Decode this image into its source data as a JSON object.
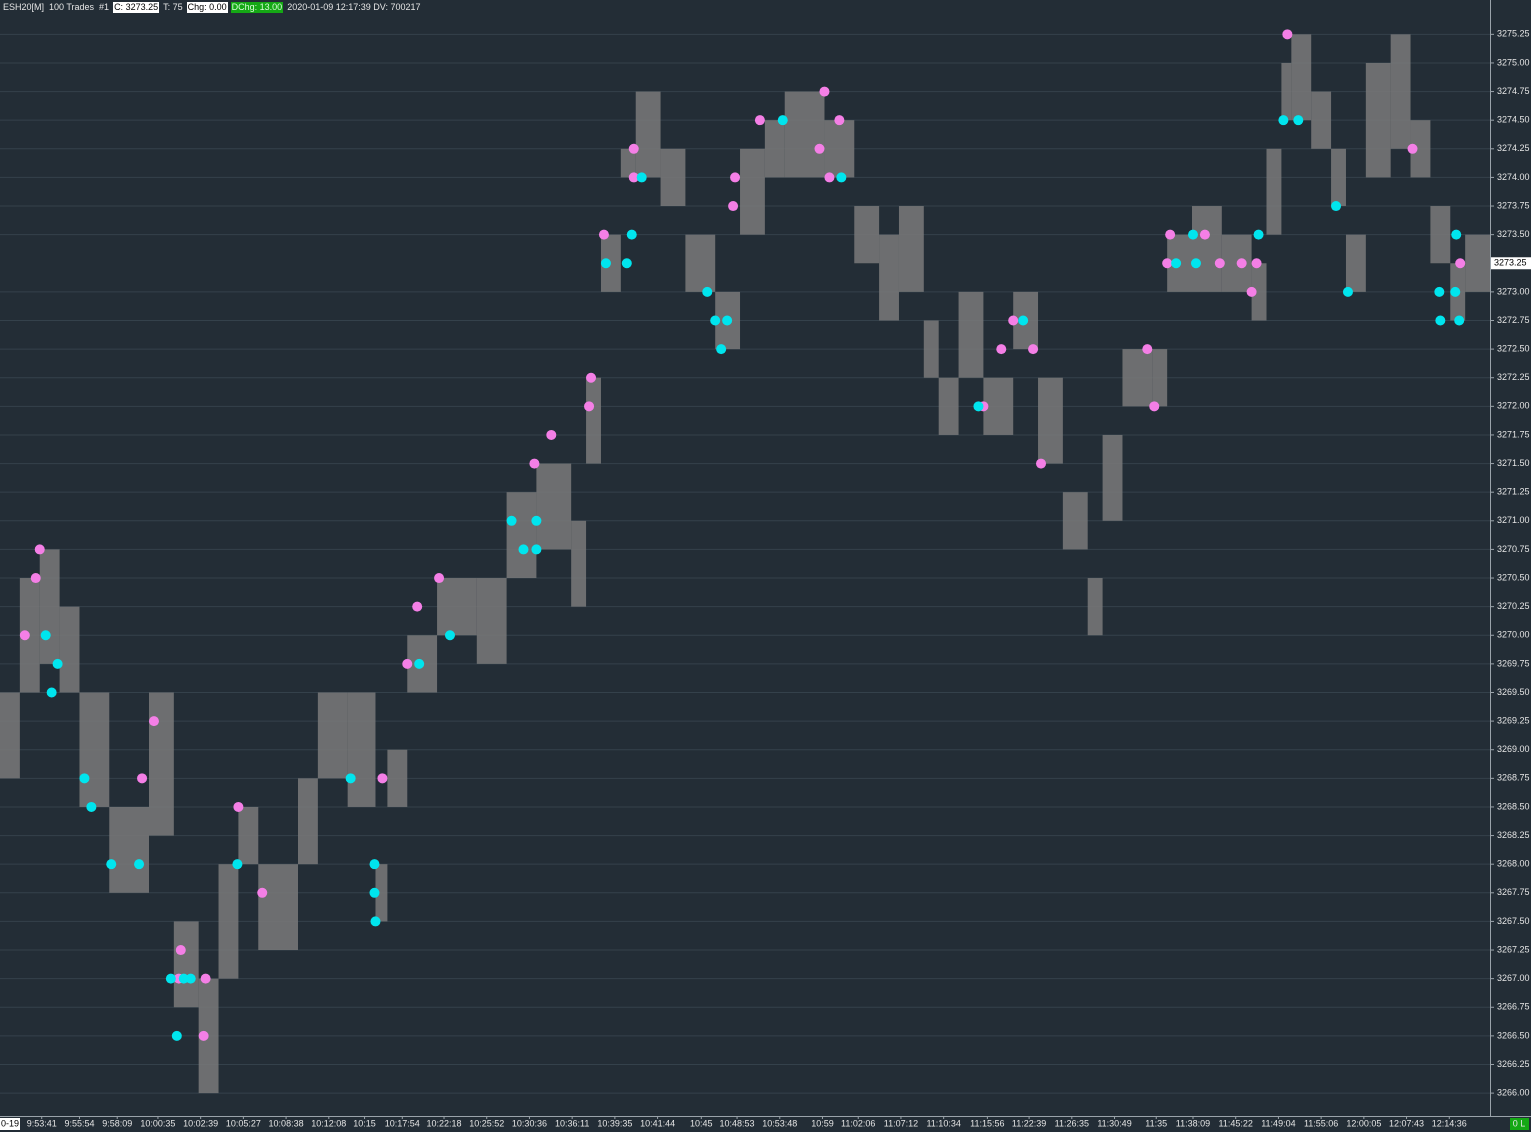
{
  "chart_data": {
    "type": "range-bar",
    "header": {
      "symbol": "ESH20[M]  100 Trades  #1",
      "close": "C: 3273.25",
      "trades": "T: 75",
      "change": "Chg: 0.00",
      "daily_change": "DChg: 13.00",
      "info": "2020-01-09 12:17:39 DV: 700217"
    },
    "bar_color": "#7a7a7a",
    "x": [
      0,
      4,
      8,
      12,
      16,
      22,
      30,
      35,
      40,
      44,
      48,
      52,
      60,
      64,
      70,
      75.6,
      78,
      82,
      88,
      96,
      102,
      108,
      115,
      118,
      121,
      125,
      128,
      133,
      138,
      144,
      149,
      154,
      158,
      166,
      172,
      177,
      181,
      186,
      189,
      193,
      198,
      204,
      209,
      214,
      219,
      222,
      226,
      232,
      235,
      240,
      246,
      252,
      255,
      258,
      260,
      264,
      268,
      271,
      275,
      280,
      284,
      288,
      292,
      295
    ],
    "high": [
      3269.5,
      3270.5,
      3270.75,
      3270.25,
      3269.5,
      3268.5,
      3269.5,
      3267.5,
      3267.0,
      3268.0,
      3268.5,
      3268.0,
      3268.75,
      3269.5,
      3269.5,
      3268.0,
      3269.0,
      3270.0,
      3270.5,
      3270.5,
      3271.25,
      3271.5,
      3271.0,
      3272.25,
      3273.5,
      3274.25,
      3274.75,
      3274.25,
      3273.5,
      3273.0,
      3274.25,
      3274.5,
      3274.75,
      3274.5,
      3273.75,
      3273.5,
      3273.75,
      3272.75,
      3272.25,
      3273.0,
      3272.25,
      3273.0,
      3272.25,
      3271.25,
      3270.5,
      3271.75,
      3272.5,
      3272.5,
      3273.5,
      3273.75,
      3273.5,
      3273.25,
      3274.25,
      3275.0,
      3275.25,
      3274.75,
      3274.25,
      3273.5,
      3275.0,
      3275.25,
      3274.5,
      3273.75,
      3273.25,
      3273.5
    ],
    "low": [
      3268.75,
      3269.5,
      3269.75,
      3269.5,
      3268.5,
      3267.75,
      3268.25,
      3266.75,
      3266.0,
      3267.0,
      3268.0,
      3267.25,
      3268.0,
      3268.75,
      3268.5,
      3267.5,
      3268.5,
      3269.5,
      3270.0,
      3269.75,
      3270.5,
      3270.75,
      3270.25,
      3271.5,
      3273.0,
      3274.0,
      3274.0,
      3273.75,
      3273.0,
      3272.5,
      3273.5,
      3274.0,
      3274.0,
      3274.0,
      3273.25,
      3272.75,
      3273.0,
      3272.25,
      3271.75,
      3272.25,
      3271.75,
      3272.5,
      3271.5,
      3270.75,
      3270.0,
      3271.0,
      3272.0,
      3272.0,
      3273.0,
      3273.0,
      3273.0,
      3272.75,
      3273.5,
      3274.5,
      3274.5,
      3274.25,
      3273.75,
      3273.0,
      3274.0,
      3274.25,
      3274.0,
      3273.25,
      3272.75,
      3273.0
    ],
    "markers": [
      {
        "color": "#f47fe6",
        "x": [
          5,
          7.2,
          8,
          31,
          28.6,
          36.4,
          36,
          41,
          41.4,
          48,
          52.8,
          77,
          82,
          84,
          88.4,
          107.6,
          111,
          119,
          118.6,
          121.6,
          127.6,
          127.6,
          148,
          147.6,
          153,
          166,
          165,
          169,
          167,
          198,
          201.6,
          204,
          208,
          209.6,
          231,
          232.4,
          235.6,
          235,
          242.6,
          245.6,
          250,
          252,
          253,
          259.2,
          284.4,
          294
        ],
        "values": [
          3270.0,
          3270.5,
          3270.75,
          3269.25,
          3268.75,
          3267.25,
          3267.0,
          3266.5,
          3267.0,
          3268.5,
          3267.75,
          3268.75,
          3269.75,
          3270.25,
          3270.5,
          3271.5,
          3271.75,
          3272.25,
          3272.0,
          3273.5,
          3274.25,
          3274.0,
          3274.0,
          3273.75,
          3274.5,
          3274.75,
          3274.25,
          3274.5,
          3274.0,
          3272.0,
          3272.5,
          3272.75,
          3272.5,
          3271.5,
          3272.5,
          3272.0,
          3273.5,
          3273.25,
          3273.5,
          3273.25,
          3273.25,
          3273.0,
          3273.25,
          3275.25,
          3274.25,
          3273.25
        ]
      },
      {
        "color": "#00e5ee",
        "x": [
          9.2,
          11.6,
          10.4,
          17,
          18.4,
          22.4,
          28,
          34.4,
          37,
          38.4,
          35.6,
          47.8,
          70.6,
          75.4,
          75.4,
          75.6,
          84.4,
          90.6,
          103,
          105.4,
          108,
          108,
          122,
          126.2,
          127.2,
          129.2,
          142.4,
          144,
          146.4,
          145.2,
          157.6,
          169.4,
          197,
          206,
          236.8,
          240.2,
          240.8,
          253.4,
          258.4,
          261.4,
          269,
          271.4,
          289.8,
          290,
          293,
          293.2,
          293.8
        ],
        "values": [
          3270.0,
          3269.75,
          3269.5,
          3268.75,
          3268.5,
          3268.0,
          3268.0,
          3267.0,
          3267.0,
          3267.0,
          3266.5,
          3268.0,
          3268.75,
          3268.0,
          3267.75,
          3267.5,
          3269.75,
          3270.0,
          3271.0,
          3270.75,
          3270.75,
          3271.0,
          3273.25,
          3273.25,
          3273.5,
          3274.0,
          3273.0,
          3272.75,
          3272.75,
          3272.5,
          3274.5,
          3274.0,
          3272.0,
          3272.75,
          3273.25,
          3273.5,
          3273.25,
          3273.5,
          3274.5,
          3274.5,
          3273.75,
          3273.0,
          3273.0,
          3272.75,
          3273.0,
          3273.5,
          3272.75
        ]
      }
    ],
    "last": {
      "value": 3273.25,
      "label": "3273.25"
    },
    "session_label": "0-19",
    "status": "0 L",
    "xlim": [
      0,
      300
    ],
    "ylim": [
      3265.8,
      3275.55
    ],
    "grid": true,
    "xticks": [
      {
        "value": 8.4,
        "label": "9:53:41"
      },
      {
        "value": 16,
        "label": "9:55:54"
      },
      {
        "value": 23.6,
        "label": "9:58:09"
      },
      {
        "value": 31.8,
        "label": "10:00:35"
      },
      {
        "value": 40.4,
        "label": "10:02:39"
      },
      {
        "value": 49,
        "label": "10:05:27"
      },
      {
        "value": 57.6,
        "label": "10:08:38"
      },
      {
        "value": 66.2,
        "label": "10:12:08"
      },
      {
        "value": 73.4,
        "label": "10:15"
      },
      {
        "value": 81,
        "label": "10:17:54"
      },
      {
        "value": 89.4,
        "label": "10:22:18"
      },
      {
        "value": 98,
        "label": "10:25:52"
      },
      {
        "value": 106.6,
        "label": "10:30:36"
      },
      {
        "value": 115.2,
        "label": "10:36:11"
      },
      {
        "value": 123.8,
        "label": "10:39:35"
      },
      {
        "value": 132.4,
        "label": "10:41:44"
      },
      {
        "value": 141.2,
        "label": "10:45"
      },
      {
        "value": 148.4,
        "label": "10:48:53"
      },
      {
        "value": 157,
        "label": "10:53:48"
      },
      {
        "value": 165.6,
        "label": "10:59"
      },
      {
        "value": 172.8,
        "label": "11:02:06"
      },
      {
        "value": 181.4,
        "label": "11:07:12"
      },
      {
        "value": 190,
        "label": "11:10:34"
      },
      {
        "value": 198.8,
        "label": "11:15:56"
      },
      {
        "value": 207.2,
        "label": "11:22:39"
      },
      {
        "value": 215.8,
        "label": "11:26:35"
      },
      {
        "value": 224.4,
        "label": "11:30:49"
      },
      {
        "value": 232.8,
        "label": "11:35"
      },
      {
        "value": 240.2,
        "label": "11:38:09"
      },
      {
        "value": 248.8,
        "label": "11:45:22"
      },
      {
        "value": 257.4,
        "label": "11:49:04"
      },
      {
        "value": 266,
        "label": "11:55:06"
      },
      {
        "value": 274.6,
        "label": "12:00:05"
      },
      {
        "value": 283.2,
        "label": "12:07:43"
      },
      {
        "value": 291.8,
        "label": "12:14:36"
      }
    ],
    "yticks": [
      {
        "value": 3266.0,
        "label": "3266.00"
      },
      {
        "value": 3266.25,
        "label": "3266.25"
      },
      {
        "value": 3266.5,
        "label": "3266.50"
      },
      {
        "value": 3266.75,
        "label": "3266.75"
      },
      {
        "value": 3267.0,
        "label": "3267.00"
      },
      {
        "value": 3267.25,
        "label": "3267.25"
      },
      {
        "value": 3267.5,
        "label": "3267.50"
      },
      {
        "value": 3267.75,
        "label": "3267.75"
      },
      {
        "value": 3268.0,
        "label": "3268.00"
      },
      {
        "value": 3268.25,
        "label": "3268.25"
      },
      {
        "value": 3268.5,
        "label": "3268.50"
      },
      {
        "value": 3268.75,
        "label": "3268.75"
      },
      {
        "value": 3269.0,
        "label": "3269.00"
      },
      {
        "value": 3269.25,
        "label": "3269.25"
      },
      {
        "value": 3269.5,
        "label": "3269.50"
      },
      {
        "value": 3269.75,
        "label": "3269.75"
      },
      {
        "value": 3270.0,
        "label": "3270.00"
      },
      {
        "value": 3270.25,
        "label": "3270.25"
      },
      {
        "value": 3270.5,
        "label": "3270.50"
      },
      {
        "value": 3270.75,
        "label": "3270.75"
      },
      {
        "value": 3271.0,
        "label": "3271.00"
      },
      {
        "value": 3271.25,
        "label": "3271.25"
      },
      {
        "value": 3271.5,
        "label": "3271.50"
      },
      {
        "value": 3271.75,
        "label": "3271.75"
      },
      {
        "value": 3272.0,
        "label": "3272.00"
      },
      {
        "value": 3272.25,
        "label": "3272.25"
      },
      {
        "value": 3272.5,
        "label": "3272.50"
      },
      {
        "value": 3272.75,
        "label": "3272.75"
      },
      {
        "value": 3273.0,
        "label": "3273.00"
      },
      {
        "value": 3273.5,
        "label": "3273.50"
      },
      {
        "value": 3273.75,
        "label": "3273.75"
      },
      {
        "value": 3274.0,
        "label": "3274.00"
      },
      {
        "value": 3274.25,
        "label": "3274.25"
      },
      {
        "value": 3274.5,
        "label": "3274.50"
      },
      {
        "value": 3274.75,
        "label": "3274.75"
      },
      {
        "value": 3275.0,
        "label": "3275.00"
      },
      {
        "value": 3275.25,
        "label": "3275.25"
      }
    ]
  }
}
